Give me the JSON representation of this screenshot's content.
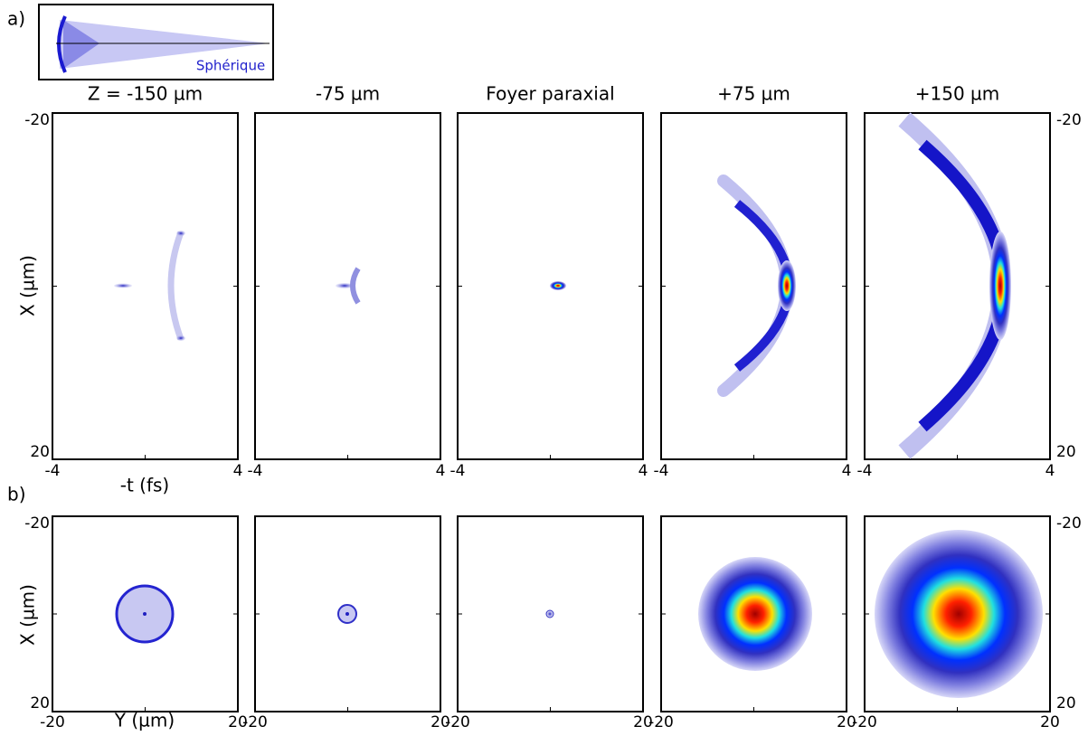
{
  "panel_a": {
    "label": "a)",
    "inset_label": "Sphérique",
    "column_titles": [
      "Z = -150 µm",
      "-75 µm",
      "Foyer paraxial",
      "+75 µm",
      "+150 µm"
    ],
    "y_label": "X (µm)",
    "x_label": "-t (fs)",
    "y_ticks": [
      "-20",
      "20"
    ],
    "x_ticks": [
      "-4",
      "4"
    ]
  },
  "panel_b": {
    "label": "b)",
    "y_label": "X (µm)",
    "x_label": "Y (µm)",
    "y_ticks": [
      "-20",
      "20"
    ],
    "x_ticks": [
      "-20",
      "20"
    ]
  }
}
